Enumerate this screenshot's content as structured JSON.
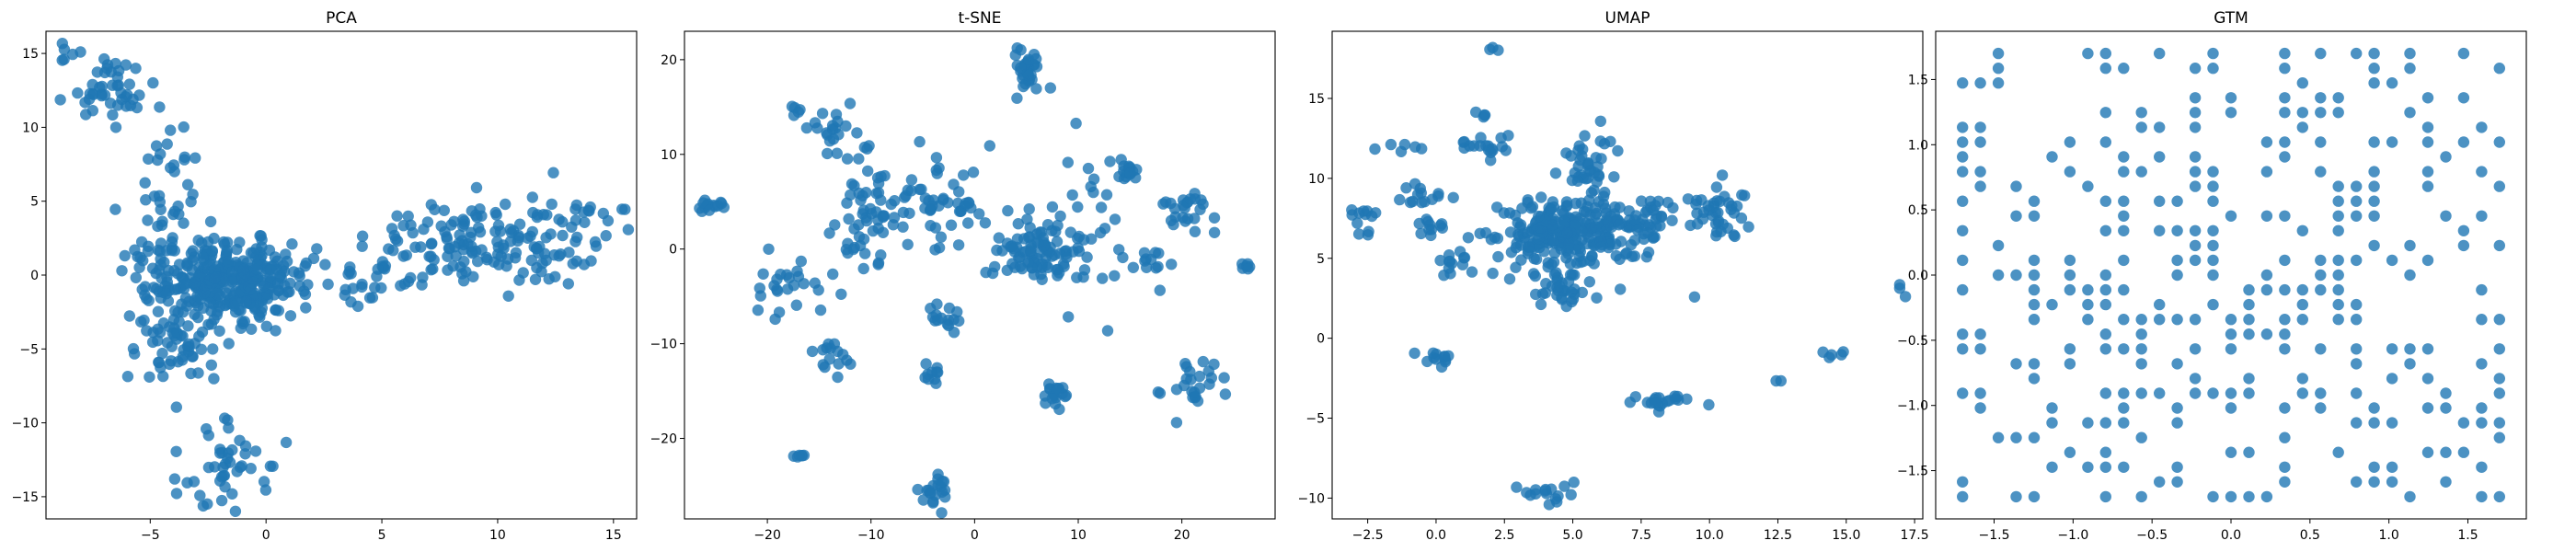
{
  "figure": {
    "background": "#ffffff",
    "point_color": "#1f77b4"
  },
  "chart_data": [
    {
      "type": "scatter",
      "title": "PCA",
      "xlabel": "",
      "ylabel": "",
      "xlim": [
        -9.5,
        16.0
      ],
      "ylim": [
        -16.5,
        16.5
      ],
      "xticks": [
        -5,
        0,
        5,
        10,
        15
      ],
      "yticks": [
        -15,
        -10,
        -5,
        0,
        5,
        10,
        15
      ],
      "grid": false,
      "color": "#1f77b4",
      "clusters": [
        {
          "cx": -1.5,
          "cy": -0.3,
          "sx": 1.6,
          "sy": 1.3,
          "n": 330
        },
        {
          "cx": -3.8,
          "cy": -4.2,
          "sx": 0.9,
          "sy": 1.6,
          "n": 70
        },
        {
          "cx": -4.5,
          "cy": 1.5,
          "sx": 0.9,
          "sy": 2.0,
          "n": 40
        },
        {
          "cx": -1.5,
          "cy": -12.5,
          "sx": 1.0,
          "sy": 1.5,
          "n": 45
        },
        {
          "cx": 9.0,
          "cy": 2.0,
          "sx": 2.6,
          "sy": 1.4,
          "n": 140
        },
        {
          "cx": 13.0,
          "cy": 3.5,
          "sx": 1.2,
          "sy": 1.6,
          "n": 30
        },
        {
          "cx": -6.8,
          "cy": 12.5,
          "sx": 0.9,
          "sy": 1.1,
          "n": 45
        },
        {
          "cx": -8.5,
          "cy": 15.0,
          "sx": 0.3,
          "sy": 0.3,
          "n": 6
        },
        {
          "cx": -4.2,
          "cy": 6.5,
          "sx": 0.6,
          "sy": 1.8,
          "n": 20
        },
        {
          "cx": 4.0,
          "cy": 0.0,
          "sx": 1.2,
          "sy": 0.9,
          "n": 25
        }
      ]
    },
    {
      "type": "scatter",
      "title": "t-SNE",
      "xlabel": "",
      "ylabel": "",
      "xlim": [
        -28.0,
        29.0
      ],
      "ylim": [
        -28.5,
        23.0
      ],
      "xticks": [
        -20,
        -10,
        0,
        10,
        20
      ],
      "yticks": [
        -20,
        -10,
        0,
        10,
        20
      ],
      "grid": false,
      "color": "#1f77b4",
      "clusters": [
        {
          "cx": 5.0,
          "cy": 18.5,
          "sx": 0.7,
          "sy": 1.2,
          "n": 30
        },
        {
          "cx": 6.0,
          "cy": -0.5,
          "sx": 2.0,
          "sy": 1.6,
          "n": 90
        },
        {
          "cx": -4.0,
          "cy": -25.5,
          "sx": 0.6,
          "sy": 1.2,
          "n": 20
        },
        {
          "cx": 7.5,
          "cy": -15.5,
          "sx": 0.7,
          "sy": 0.8,
          "n": 18
        },
        {
          "cx": 21.0,
          "cy": -14.5,
          "sx": 1.2,
          "sy": 1.2,
          "n": 25
        },
        {
          "cx": 20.5,
          "cy": 4.5,
          "sx": 1.4,
          "sy": 1.2,
          "n": 25
        },
        {
          "cx": 15.0,
          "cy": 8.5,
          "sx": 0.5,
          "sy": 0.8,
          "n": 15
        },
        {
          "cx": -25.5,
          "cy": 4.5,
          "sx": 1.2,
          "sy": 0.5,
          "n": 15
        },
        {
          "cx": -17.0,
          "cy": -21.7,
          "sx": 0.3,
          "sy": 0.2,
          "n": 6
        },
        {
          "cx": -10.0,
          "cy": 4.0,
          "sx": 2.0,
          "sy": 3.5,
          "n": 60
        },
        {
          "cx": -3.0,
          "cy": 4.5,
          "sx": 2.5,
          "sy": 2.5,
          "n": 50
        },
        {
          "cx": -18.0,
          "cy": -3.5,
          "sx": 1.5,
          "sy": 1.5,
          "n": 25
        },
        {
          "cx": -13.5,
          "cy": -11.5,
          "sx": 1.0,
          "sy": 1.2,
          "n": 15
        },
        {
          "cx": -3.0,
          "cy": -7.5,
          "sx": 1.0,
          "sy": 1.2,
          "n": 15
        },
        {
          "cx": 16.0,
          "cy": -2.0,
          "sx": 1.5,
          "sy": 1.5,
          "n": 15
        },
        {
          "cx": 26.0,
          "cy": -2.0,
          "sx": 0.4,
          "sy": 0.3,
          "n": 6
        },
        {
          "cx": -4.0,
          "cy": -13.0,
          "sx": 0.8,
          "sy": 0.6,
          "n": 10
        },
        {
          "cx": -14.0,
          "cy": 12.0,
          "sx": 1.2,
          "sy": 1.5,
          "n": 20
        },
        {
          "cx": -17.5,
          "cy": 15.0,
          "sx": 0.3,
          "sy": 0.4,
          "n": 5
        },
        {
          "cx": 11.0,
          "cy": 4.0,
          "sx": 2.5,
          "sy": 4.0,
          "n": 25
        }
      ]
    },
    {
      "type": "scatter",
      "title": "UMAP",
      "xlabel": "",
      "ylabel": "",
      "xlim": [
        -3.8,
        17.8
      ],
      "ylim": [
        -11.3,
        19.2
      ],
      "xticks": [
        -2.5,
        0.0,
        2.5,
        5.0,
        7.5,
        10.0,
        12.5,
        15.0,
        17.5
      ],
      "yticks": [
        -10,
        -5,
        0,
        5,
        10,
        15
      ],
      "grid": false,
      "color": "#1f77b4",
      "clusters": [
        {
          "cx": 4.8,
          "cy": 6.5,
          "sx": 1.3,
          "sy": 1.1,
          "n": 260
        },
        {
          "cx": 5.6,
          "cy": 10.5,
          "sx": 0.5,
          "sy": 1.2,
          "n": 40
        },
        {
          "cx": 7.5,
          "cy": 7.5,
          "sx": 0.9,
          "sy": 0.6,
          "n": 40
        },
        {
          "cx": 10.2,
          "cy": 7.8,
          "sx": 0.7,
          "sy": 0.8,
          "n": 40
        },
        {
          "cx": 4.5,
          "cy": 3.0,
          "sx": 0.8,
          "sy": 0.6,
          "n": 30
        },
        {
          "cx": 2.0,
          "cy": 12.0,
          "sx": 0.5,
          "sy": 0.5,
          "n": 18
        },
        {
          "cx": 1.6,
          "cy": 14.0,
          "sx": 0.2,
          "sy": 0.2,
          "n": 4
        },
        {
          "cx": 2.1,
          "cy": 18.0,
          "sx": 0.1,
          "sy": 0.15,
          "n": 3
        },
        {
          "cx": -2.8,
          "cy": 7.0,
          "sx": 0.3,
          "sy": 0.5,
          "n": 12
        },
        {
          "cx": -0.5,
          "cy": 8.8,
          "sx": 0.5,
          "sy": 0.4,
          "n": 14
        },
        {
          "cx": 0.0,
          "cy": 7.0,
          "sx": 0.5,
          "sy": 0.3,
          "n": 12
        },
        {
          "cx": 0.8,
          "cy": 4.5,
          "sx": 0.6,
          "sy": 0.6,
          "n": 14
        },
        {
          "cx": -1.2,
          "cy": 12.0,
          "sx": 0.4,
          "sy": 0.2,
          "n": 6
        },
        {
          "cx": 0.1,
          "cy": -1.2,
          "sx": 0.4,
          "sy": 0.3,
          "n": 12
        },
        {
          "cx": 8.3,
          "cy": -4.0,
          "sx": 0.6,
          "sy": 0.3,
          "n": 20
        },
        {
          "cx": 4.3,
          "cy": -10.0,
          "sx": 0.5,
          "sy": 0.4,
          "n": 16
        },
        {
          "cx": 14.6,
          "cy": -1.1,
          "sx": 0.3,
          "sy": 0.2,
          "n": 5
        },
        {
          "cx": 12.5,
          "cy": -2.8,
          "sx": 0.05,
          "sy": 0.1,
          "n": 2
        },
        {
          "cx": 17.0,
          "cy": 3.0,
          "sx": 0.1,
          "sy": 0.2,
          "n": 3
        },
        {
          "cx": 9.5,
          "cy": 2.6,
          "sx": 0.05,
          "sy": 0.05,
          "n": 1
        }
      ]
    },
    {
      "type": "scatter",
      "title": "GTM",
      "xlabel": "",
      "ylabel": "",
      "xlim": [
        -1.87,
        1.87
      ],
      "ylim": [
        -1.87,
        1.87
      ],
      "xticks": [
        -1.5,
        -1.0,
        -0.5,
        0.0,
        0.5,
        1.0,
        1.5
      ],
      "yticks": [
        -1.5,
        -1.0,
        -0.5,
        0.0,
        0.5,
        1.0,
        1.5
      ],
      "grid": false,
      "color": "#1f77b4",
      "lattice": {
        "range": [
          -1.7,
          1.7
        ],
        "nodes": 31,
        "fill": 0.33,
        "seed": 7
      }
    }
  ]
}
